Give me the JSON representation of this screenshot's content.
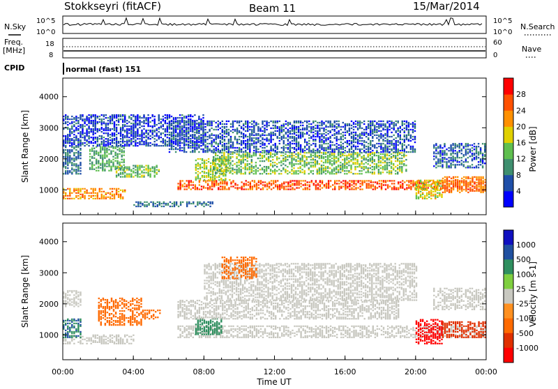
{
  "header": {
    "station": "Stokkseyri (fitACF)",
    "beam": "Beam 11",
    "date": "15/Mar/2014"
  },
  "strip": {
    "nsky_label": "N.Sky",
    "nsky_ticks": [
      "10^5",
      "10^0"
    ],
    "nsearch_label": "N.Search",
    "nsearch_ticks": [
      "10^5",
      "10^0"
    ],
    "freq_label": "Freq.",
    "freq_unit": "[MHz]",
    "freq_ticks": [
      "18",
      "8"
    ],
    "nave_label": "Nave",
    "nave_ticks": [
      "60",
      "0"
    ],
    "cpid_label": "CPID",
    "cpid_value": "normal (fast) 151"
  },
  "x_axis": {
    "title": "Time UT",
    "ticks": [
      "00:00",
      "04:00",
      "08:00",
      "12:00",
      "16:00",
      "20:00",
      "00:00"
    ]
  },
  "colors": {
    "power": [
      "#0000ff",
      "#1f4fa8",
      "#3f8f6f",
      "#5fbf4f",
      "#e0d000",
      "#ff9000",
      "#ff5000",
      "#ff0000"
    ],
    "velocity": [
      "#1010c0",
      "#2050a0",
      "#2f8f5f",
      "#7fcf3f",
      "#c8c8c0",
      "#ff9020",
      "#ff6a00",
      "#e03000",
      "#ff0000"
    ]
  },
  "chart_data": [
    {
      "type": "heatmap",
      "name": "power",
      "xlabel": "Time UT",
      "ylabel": "Slant Range [km]",
      "ylim": [
        200,
        4600
      ],
      "y_ticks": [
        1000,
        2000,
        3000,
        4000
      ],
      "colorbar": {
        "label": "Power [dB]",
        "ticks": [
          4,
          8,
          12,
          16,
          20,
          24,
          28
        ],
        "range": [
          0,
          32
        ]
      },
      "bands": [
        {
          "x": [
            0.0,
            3.5
          ],
          "y": [
            700,
            1050
          ],
          "value": 22
        },
        {
          "x": [
            0.0,
            1.0
          ],
          "y": [
            1500,
            2600
          ],
          "value": 8
        },
        {
          "x": [
            1.5,
            3.5
          ],
          "y": [
            1600,
            2400
          ],
          "value": 12
        },
        {
          "x": [
            3.0,
            5.5
          ],
          "y": [
            1400,
            1800
          ],
          "value": 14
        },
        {
          "x": [
            0.0,
            8.0
          ],
          "y": [
            2400,
            3400
          ],
          "value": 5
        },
        {
          "x": [
            6.5,
            24.0
          ],
          "y": [
            1000,
            1300
          ],
          "value": 26
        },
        {
          "x": [
            7.5,
            9.5
          ],
          "y": [
            1300,
            2000
          ],
          "value": 16
        },
        {
          "x": [
            8.5,
            19.5
          ],
          "y": [
            1500,
            2200
          ],
          "value": 14
        },
        {
          "x": [
            6.0,
            20.0
          ],
          "y": [
            2200,
            3200
          ],
          "value": 6
        },
        {
          "x": [
            20.0,
            21.5
          ],
          "y": [
            700,
            1300
          ],
          "value": 18
        },
        {
          "x": [
            21.5,
            24.0
          ],
          "y": [
            900,
            1400
          ],
          "value": 24
        },
        {
          "x": [
            21.0,
            24.0
          ],
          "y": [
            1700,
            2500
          ],
          "value": 7
        },
        {
          "x": [
            4.0,
            8.5
          ],
          "y": [
            450,
            600
          ],
          "value": 8
        }
      ]
    },
    {
      "type": "heatmap",
      "name": "velocity",
      "xlabel": "Time UT",
      "ylabel": "Slant Range [km]",
      "ylim": [
        200,
        4600
      ],
      "y_ticks": [
        1000,
        2000,
        3000,
        4000
      ],
      "colorbar": {
        "label": "Velocity [m s-1]",
        "ticks": [
          1000,
          500,
          100,
          25,
          -25,
          -100,
          -500,
          -1000
        ]
      },
      "bands": [
        {
          "x": [
            0.0,
            4.0
          ],
          "y": [
            700,
            1000
          ],
          "value": 0
        },
        {
          "x": [
            0.0,
            1.0
          ],
          "y": [
            1900,
            2400
          ],
          "value": 0
        },
        {
          "x": [
            0.0,
            1.0
          ],
          "y": [
            900,
            1500
          ],
          "value": 300
        },
        {
          "x": [
            2.0,
            4.5
          ],
          "y": [
            1300,
            2200
          ],
          "value": -200
        },
        {
          "x": [
            4.5,
            5.5
          ],
          "y": [
            1500,
            1800
          ],
          "value": -150
        },
        {
          "x": [
            6.5,
            24.0
          ],
          "y": [
            900,
            1300
          ],
          "value": 0
        },
        {
          "x": [
            7.5,
            9.0
          ],
          "y": [
            1000,
            1500
          ],
          "value": 150
        },
        {
          "x": [
            6.5,
            19.0
          ],
          "y": [
            1500,
            2100
          ],
          "value": 0
        },
        {
          "x": [
            8.0,
            20.0
          ],
          "y": [
            2100,
            3300
          ],
          "value": 0
        },
        {
          "x": [
            9.0,
            11.0
          ],
          "y": [
            2800,
            3500
          ],
          "value": -100
        },
        {
          "x": [
            20.0,
            21.5
          ],
          "y": [
            700,
            1500
          ],
          "value": -800
        },
        {
          "x": [
            21.5,
            24.0
          ],
          "y": [
            900,
            1400
          ],
          "value": -600
        },
        {
          "x": [
            21.0,
            24.0
          ],
          "y": [
            1800,
            2500
          ],
          "value": 0
        }
      ]
    }
  ]
}
